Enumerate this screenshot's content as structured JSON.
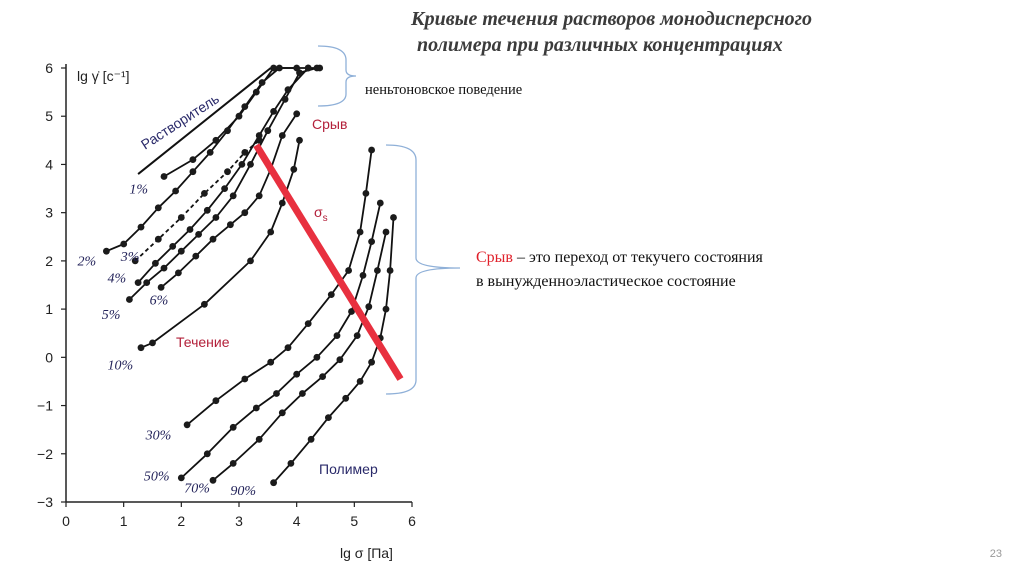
{
  "slide": {
    "title_line1": "Кривые течения растворов монодисперсного",
    "title_line2": "полимера при различных концентрациях",
    "note": "неньтоновское поведение",
    "definition_term": "Срыв",
    "definition_rest_line1": " – это переход от текучего состояния",
    "definition_line2": "в вынужденноэластическое состояние",
    "page_number": "23"
  },
  "colors": {
    "curve": "#111111",
    "marker": "#1b1b1b",
    "breakdown_line": "#e8303f",
    "bracket": "#8fb0d8",
    "label_blue": "#23235a",
    "label_red": "#b3203a"
  },
  "chart_data": {
    "type": "line",
    "xlabel": "lg σ [Па]",
    "ylabel": "lg γ̇ [с⁻¹]",
    "xlim": [
      0,
      6
    ],
    "ylim": [
      -3,
      6
    ],
    "x_ticks": [
      "0",
      "1",
      "2",
      "3",
      "4",
      "5",
      "6"
    ],
    "y_ticks": [
      "6",
      "5",
      "4",
      "3",
      "2",
      "1",
      "0",
      "−1",
      "−2",
      "−3"
    ],
    "annotations": {
      "solvent": "Растворитель",
      "breakdown": "Срыв",
      "sigma": "σ",
      "sigma_sub": "s",
      "flow": "Течение",
      "polymer": "Полимер"
    },
    "solvent_line": [
      [
        1.25,
        3.8
      ],
      [
        3.55,
        6.0
      ]
    ],
    "breakdown_line": [
      [
        3.3,
        4.4
      ],
      [
        5.8,
        -0.45
      ]
    ],
    "series": [
      {
        "name": "1%",
        "label_at": [
          1.1,
          3.4
        ],
        "dashed": false,
        "points": [
          [
            1.7,
            3.75
          ],
          [
            2.2,
            4.1
          ],
          [
            2.6,
            4.5
          ],
          [
            3.0,
            5.0
          ],
          [
            3.3,
            5.5
          ],
          [
            3.6,
            6.0
          ],
          [
            4.0,
            6.0
          ]
        ]
      },
      {
        "name": "2%",
        "label_at": [
          0.2,
          1.9
        ],
        "dashed": false,
        "points": [
          [
            0.7,
            2.2
          ],
          [
            1.0,
            2.35
          ],
          [
            1.3,
            2.7
          ],
          [
            1.6,
            3.1
          ],
          [
            1.9,
            3.45
          ],
          [
            2.2,
            3.85
          ],
          [
            2.5,
            4.25
          ],
          [
            2.8,
            4.7
          ],
          [
            3.1,
            5.2
          ],
          [
            3.4,
            5.7
          ],
          [
            3.7,
            6.0
          ],
          [
            4.2,
            6.0
          ]
        ]
      },
      {
        "name": "3%",
        "label_at": [
          0.95,
          2.0
        ],
        "dashed": true,
        "points": [
          [
            1.2,
            2.0
          ],
          [
            1.6,
            2.45
          ],
          [
            2.0,
            2.9
          ],
          [
            2.4,
            3.4
          ],
          [
            2.8,
            3.85
          ],
          [
            3.1,
            4.25
          ],
          [
            3.35,
            4.5
          ]
        ]
      },
      {
        "name": "4%",
        "label_at": [
          0.72,
          1.55
        ],
        "dashed": false,
        "points": [
          [
            1.25,
            1.55
          ],
          [
            1.55,
            1.95
          ],
          [
            1.85,
            2.3
          ],
          [
            2.15,
            2.65
          ],
          [
            2.45,
            3.05
          ],
          [
            2.75,
            3.5
          ],
          [
            3.05,
            4.0
          ],
          [
            3.35,
            4.6
          ],
          [
            3.6,
            5.1
          ],
          [
            3.85,
            5.55
          ],
          [
            4.2,
            6.0
          ],
          [
            4.4,
            6.0
          ]
        ]
      },
      {
        "name": "5%",
        "label_at": [
          0.62,
          0.8
        ],
        "dashed": false,
        "points": [
          [
            1.1,
            1.2
          ],
          [
            1.4,
            1.55
          ],
          [
            1.7,
            1.85
          ],
          [
            2.0,
            2.2
          ],
          [
            2.3,
            2.55
          ],
          [
            2.6,
            2.9
          ],
          [
            2.9,
            3.35
          ],
          [
            3.2,
            4.0
          ],
          [
            3.5,
            4.7
          ],
          [
            3.8,
            5.35
          ],
          [
            4.05,
            5.9
          ],
          [
            4.35,
            6.0
          ]
        ]
      },
      {
        "name": "6%",
        "label_at": [
          1.45,
          1.1
        ],
        "dashed": false,
        "points": [
          [
            1.65,
            1.45
          ],
          [
            1.95,
            1.75
          ],
          [
            2.25,
            2.1
          ],
          [
            2.55,
            2.45
          ],
          [
            2.85,
            2.75
          ],
          [
            3.1,
            3.0
          ],
          [
            3.35,
            3.35
          ],
          [
            3.55,
            3.9
          ],
          [
            3.75,
            4.6
          ],
          [
            4.0,
            5.05
          ]
        ]
      },
      {
        "name": "10%",
        "label_at": [
          0.72,
          -0.25
        ],
        "dashed": false,
        "points": [
          [
            1.3,
            0.2
          ],
          [
            1.5,
            0.3
          ],
          [
            2.4,
            1.1
          ],
          [
            3.2,
            2.0
          ],
          [
            3.55,
            2.6
          ],
          [
            3.75,
            3.2
          ],
          [
            3.95,
            3.9
          ],
          [
            4.05,
            4.5
          ]
        ]
      },
      {
        "name": "30%",
        "label_at": [
          1.38,
          -1.7
        ],
        "dashed": false,
        "points": [
          [
            2.1,
            -1.4
          ],
          [
            2.6,
            -0.9
          ],
          [
            3.1,
            -0.45
          ],
          [
            3.55,
            -0.1
          ],
          [
            3.85,
            0.2
          ],
          [
            4.2,
            0.7
          ],
          [
            4.6,
            1.3
          ],
          [
            4.9,
            1.8
          ],
          [
            5.1,
            2.6
          ],
          [
            5.2,
            3.4
          ],
          [
            5.3,
            4.3
          ]
        ]
      },
      {
        "name": "50%",
        "label_at": [
          1.35,
          -2.55
        ],
        "dashed": false,
        "points": [
          [
            2.0,
            -2.5
          ],
          [
            2.45,
            -2.0
          ],
          [
            2.9,
            -1.45
          ],
          [
            3.3,
            -1.05
          ],
          [
            3.65,
            -0.75
          ],
          [
            4.0,
            -0.35
          ],
          [
            4.35,
            0.0
          ],
          [
            4.7,
            0.45
          ],
          [
            4.95,
            0.95
          ],
          [
            5.15,
            1.7
          ],
          [
            5.3,
            2.4
          ],
          [
            5.45,
            3.2
          ]
        ]
      },
      {
        "name": "70%",
        "label_at": [
          2.05,
          -2.8
        ],
        "dashed": false,
        "points": [
          [
            2.55,
            -2.55
          ],
          [
            2.9,
            -2.2
          ],
          [
            3.35,
            -1.7
          ],
          [
            3.75,
            -1.15
          ],
          [
            4.1,
            -0.75
          ],
          [
            4.45,
            -0.4
          ],
          [
            4.75,
            -0.05
          ],
          [
            5.05,
            0.45
          ],
          [
            5.25,
            1.05
          ],
          [
            5.4,
            1.8
          ],
          [
            5.55,
            2.6
          ]
        ]
      },
      {
        "name": "90%",
        "label_at": [
          2.85,
          -2.85
        ],
        "dashed": false,
        "points": [
          [
            3.6,
            -2.6
          ],
          [
            3.9,
            -2.2
          ],
          [
            4.25,
            -1.7
          ],
          [
            4.55,
            -1.25
          ],
          [
            4.85,
            -0.85
          ],
          [
            5.1,
            -0.5
          ],
          [
            5.3,
            -0.1
          ],
          [
            5.45,
            0.4
          ],
          [
            5.55,
            1.0
          ],
          [
            5.62,
            1.8
          ],
          [
            5.68,
            2.9
          ]
        ]
      }
    ]
  }
}
